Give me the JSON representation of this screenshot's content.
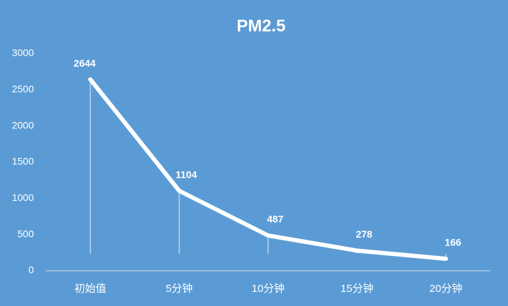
{
  "chart_data": {
    "type": "line",
    "title": "PM2.5",
    "categories": [
      "初始值",
      "5分钟",
      "10分钟",
      "15分钟",
      "20分钟"
    ],
    "values": [
      2644,
      1104,
      487,
      278,
      166
    ],
    "color": "#ffffff",
    "ylim": [
      0,
      3000
    ],
    "yticks": [
      0,
      500,
      1000,
      1500,
      2000,
      2500,
      3000
    ],
    "drop_lines": true
  }
}
